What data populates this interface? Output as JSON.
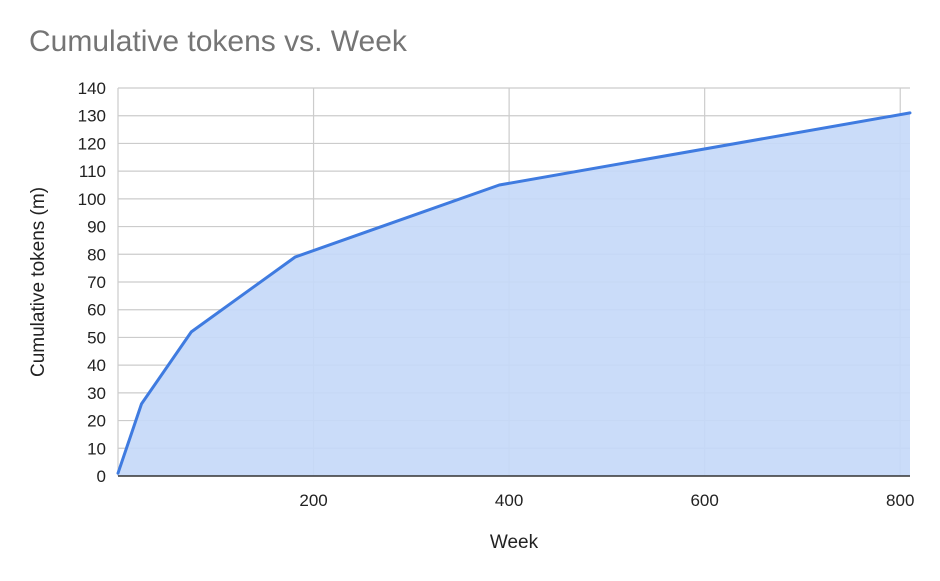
{
  "chart_data": {
    "type": "area",
    "title": "Cumulative tokens vs. Week",
    "xlabel": "Week",
    "ylabel": "Cumulative tokens (m)",
    "xlim": [
      0,
      810
    ],
    "ylim": [
      0,
      140
    ],
    "x_ticks": [
      200,
      400,
      600,
      800
    ],
    "y_ticks": [
      0,
      10,
      20,
      30,
      40,
      50,
      60,
      70,
      80,
      90,
      100,
      110,
      120,
      130,
      140
    ],
    "x_tick_labels": [
      "200",
      "400",
      "600",
      "800"
    ],
    "y_tick_labels": [
      "0",
      "10",
      "20",
      "30",
      "40",
      "50",
      "60",
      "70",
      "80",
      "90",
      "100",
      "110",
      "120",
      "130",
      "140"
    ],
    "grid": true,
    "series": [
      {
        "x": [
          0,
          24,
          75,
          181,
          390,
          810
        ],
        "values": [
          1,
          26,
          52,
          79,
          105,
          131
        ]
      }
    ],
    "colors": {
      "line": "#3f7be0",
      "area": "#c5d9f8",
      "grid": "#cccccc",
      "axis": "#333333",
      "title": "#757575"
    }
  }
}
